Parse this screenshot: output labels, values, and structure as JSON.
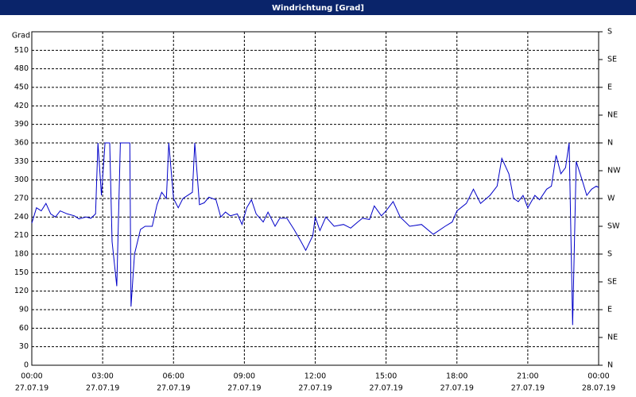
{
  "chart_data": {
    "type": "line",
    "title": "Windrichtung [Grad]",
    "y_label": "Grad",
    "color": "#0000c8",
    "grid": true,
    "x": [
      0.0,
      0.2,
      0.4,
      0.6,
      0.8,
      1.0,
      1.2,
      1.5,
      1.8,
      2.0,
      2.3,
      2.5,
      2.7,
      2.8,
      2.95,
      3.1,
      3.3,
      3.4,
      3.6,
      3.75,
      4.0,
      4.15,
      4.2,
      4.35,
      4.6,
      4.8,
      5.1,
      5.3,
      5.5,
      5.7,
      5.8,
      6.0,
      6.2,
      6.4,
      6.6,
      6.8,
      6.9,
      7.1,
      7.3,
      7.5,
      7.8,
      8.0,
      8.2,
      8.4,
      8.7,
      8.9,
      9.1,
      9.3,
      9.5,
      9.8,
      10.0,
      10.3,
      10.5,
      10.8,
      11.1,
      11.4,
      11.6,
      11.9,
      12.0,
      12.2,
      12.45,
      12.8,
      13.2,
      13.5,
      13.8,
      14.0,
      14.3,
      14.5,
      14.8,
      15.0,
      15.3,
      15.6,
      16.0,
      16.5,
      17.0,
      17.5,
      17.8,
      18.0,
      18.4,
      18.7,
      19.0,
      19.4,
      19.7,
      19.9,
      20.2,
      20.4,
      20.6,
      20.8,
      21.0,
      21.3,
      21.5,
      21.8,
      22.0,
      22.2,
      22.4,
      22.6,
      22.75,
      22.9,
      23.05,
      23.3,
      23.5,
      23.7,
      23.9,
      24.0
    ],
    "values": [
      230,
      255,
      250,
      262,
      245,
      240,
      250,
      245,
      242,
      237,
      240,
      238,
      245,
      360,
      275,
      360,
      360,
      200,
      128,
      360,
      360,
      360,
      95,
      180,
      220,
      225,
      225,
      260,
      280,
      270,
      360,
      270,
      255,
      270,
      275,
      280,
      360,
      260,
      263,
      272,
      268,
      240,
      248,
      242,
      245,
      228,
      255,
      268,
      245,
      232,
      248,
      225,
      238,
      238,
      220,
      200,
      186,
      210,
      240,
      218,
      240,
      225,
      228,
      222,
      232,
      238,
      236,
      258,
      242,
      250,
      265,
      240,
      225,
      228,
      212,
      225,
      232,
      250,
      262,
      285,
      262,
      275,
      290,
      335,
      310,
      270,
      265,
      275,
      255,
      275,
      268,
      285,
      290,
      340,
      310,
      320,
      360,
      65,
      330,
      300,
      275,
      285,
      290,
      288
    ],
    "xlim": [
      0,
      24
    ],
    "xticks": [
      {
        "value": 0,
        "label": "00:00"
      },
      {
        "value": 3,
        "label": "03:00"
      },
      {
        "value": 6,
        "label": "06:00"
      },
      {
        "value": 9,
        "label": "09:00"
      },
      {
        "value": 12,
        "label": "12:00"
      },
      {
        "value": 15,
        "label": "15:00"
      },
      {
        "value": 18,
        "label": "18:00"
      },
      {
        "value": 21,
        "label": "21:00"
      },
      {
        "value": 24,
        "label": "00:00"
      }
    ],
    "xtick_dates": [
      "27.07.19",
      "27.07.19",
      "27.07.19",
      "27.07.19",
      "27.07.19",
      "27.07.19",
      "27.07.19",
      "27.07.19",
      "28.07.19"
    ],
    "ylim": [
      0,
      540
    ],
    "yticks": [
      0,
      30,
      60,
      90,
      120,
      150,
      180,
      210,
      240,
      270,
      300,
      330,
      360,
      390,
      420,
      450,
      480,
      510
    ],
    "y2lim": [
      0,
      540
    ],
    "y2ticks": [
      {
        "value": 0,
        "label": "N"
      },
      {
        "value": 45,
        "label": "NE"
      },
      {
        "value": 90,
        "label": "E"
      },
      {
        "value": 135,
        "label": "SE"
      },
      {
        "value": 180,
        "label": "S"
      },
      {
        "value": 225,
        "label": "SW"
      },
      {
        "value": 270,
        "label": "W"
      },
      {
        "value": 315,
        "label": "NW"
      },
      {
        "value": 360,
        "label": "N"
      },
      {
        "value": 405,
        "label": "NE"
      },
      {
        "value": 450,
        "label": "E"
      },
      {
        "value": 495,
        "label": "SE"
      },
      {
        "value": 540,
        "label": "S"
      }
    ]
  }
}
